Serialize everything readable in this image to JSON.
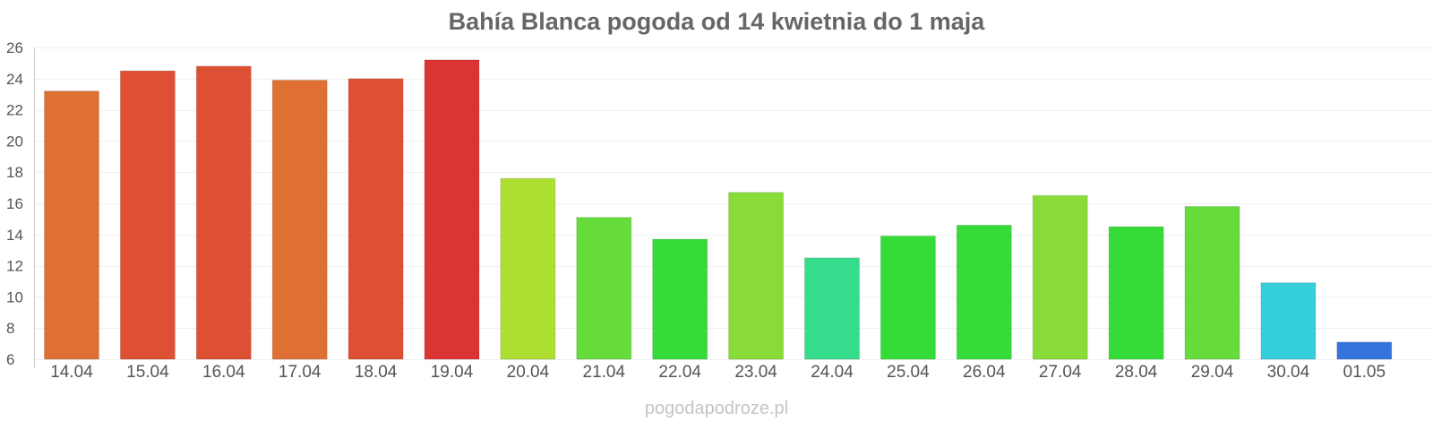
{
  "chart_data": {
    "type": "bar",
    "title": "Bahía Blanca pogoda od 14 kwietnia do 1 maja",
    "categories": [
      "14.04",
      "15.04",
      "16.04",
      "17.04",
      "18.04",
      "19.04",
      "20.04",
      "21.04",
      "22.04",
      "23.04",
      "24.04",
      "25.04",
      "26.04",
      "27.04",
      "28.04",
      "29.04",
      "30.04",
      "01.05"
    ],
    "values": [
      23.2,
      24.5,
      24.8,
      23.9,
      24.0,
      25.2,
      17.6,
      15.1,
      13.7,
      16.7,
      12.5,
      13.9,
      14.6,
      16.5,
      14.5,
      15.8,
      10.9,
      7.1
    ],
    "colors": [
      "#df7033",
      "#de5033",
      "#de5033",
      "#df7033",
      "#de5033",
      "#da3533",
      "#addf33",
      "#66dc3b",
      "#35dc37",
      "#89dc38",
      "#35dc8b",
      "#35dc37",
      "#35dc37",
      "#89dc38",
      "#35dc37",
      "#66dc3b",
      "#35cfdc",
      "#3574db"
    ],
    "yticks": [
      6,
      8,
      10,
      12,
      14,
      16,
      18,
      20,
      22,
      24,
      26
    ],
    "ylim": [
      6,
      26
    ],
    "grid": true,
    "xlabel": "",
    "ylabel": ""
  },
  "watermark": "pogodapodroze.pl"
}
